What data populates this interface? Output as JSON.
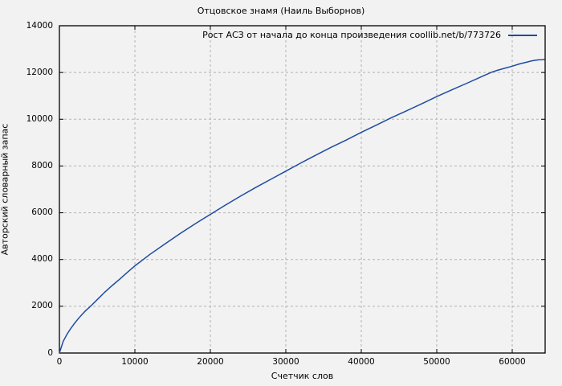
{
  "title": "Отцовское знамя (Наиль Выборнов)",
  "colors": {
    "background": "#f2f2f2",
    "line": "#1f4ba0",
    "grid": "#b3b3b3",
    "axis": "#000000"
  },
  "chart_data": {
    "type": "line",
    "title": "Отцовское знамя (Наиль Выборнов)",
    "xlabel": "Счетчик слов",
    "ylabel": "Авторский словарный запас",
    "xlim": [
      0,
      64362
    ],
    "ylim": [
      0,
      14000
    ],
    "x_ticks": [
      0,
      10000,
      20000,
      30000,
      40000,
      50000,
      60000
    ],
    "x_tick_labels": [
      "0",
      "10000",
      "20000",
      "30000",
      "40000",
      "50000",
      "60000"
    ],
    "y_ticks": [
      0,
      2000,
      4000,
      6000,
      8000,
      10000,
      12000,
      14000
    ],
    "y_tick_labels": [
      "0",
      "2000",
      "4000",
      "6000",
      "8000",
      "10000",
      "12000",
      "14000"
    ],
    "grid": true,
    "grid_style": "dashed",
    "legend_position": "top-right-inside",
    "series": [
      {
        "name": "Рост АСЗ от начала до конца произведения coollib.net/b/773726",
        "color": "#1f4ba0",
        "points": [
          [
            0,
            0
          ],
          [
            500,
            500
          ],
          [
            1000,
            800
          ],
          [
            1500,
            1050
          ],
          [
            2000,
            1270
          ],
          [
            2500,
            1470
          ],
          [
            3000,
            1650
          ],
          [
            3500,
            1820
          ],
          [
            4000,
            1960
          ],
          [
            5000,
            2280
          ],
          [
            6000,
            2600
          ],
          [
            7000,
            2890
          ],
          [
            8000,
            3160
          ],
          [
            9000,
            3450
          ],
          [
            10000,
            3730
          ],
          [
            12000,
            4220
          ],
          [
            14000,
            4670
          ],
          [
            16000,
            5110
          ],
          [
            18000,
            5530
          ],
          [
            20000,
            5930
          ],
          [
            22000,
            6330
          ],
          [
            24000,
            6710
          ],
          [
            26000,
            7080
          ],
          [
            28000,
            7430
          ],
          [
            30000,
            7780
          ],
          [
            32000,
            8130
          ],
          [
            34000,
            8470
          ],
          [
            36000,
            8800
          ],
          [
            38000,
            9110
          ],
          [
            40000,
            9440
          ],
          [
            42000,
            9750
          ],
          [
            44000,
            10070
          ],
          [
            46000,
            10360
          ],
          [
            48000,
            10660
          ],
          [
            50000,
            10970
          ],
          [
            52000,
            11260
          ],
          [
            54000,
            11540
          ],
          [
            56000,
            11830
          ],
          [
            57200,
            12000
          ],
          [
            58000,
            12090
          ],
          [
            59000,
            12180
          ],
          [
            60000,
            12270
          ],
          [
            61000,
            12370
          ],
          [
            62000,
            12450
          ],
          [
            62500,
            12490
          ],
          [
            63000,
            12520
          ],
          [
            63500,
            12540
          ],
          [
            64000,
            12550
          ],
          [
            64300,
            12555
          ]
        ]
      }
    ]
  }
}
